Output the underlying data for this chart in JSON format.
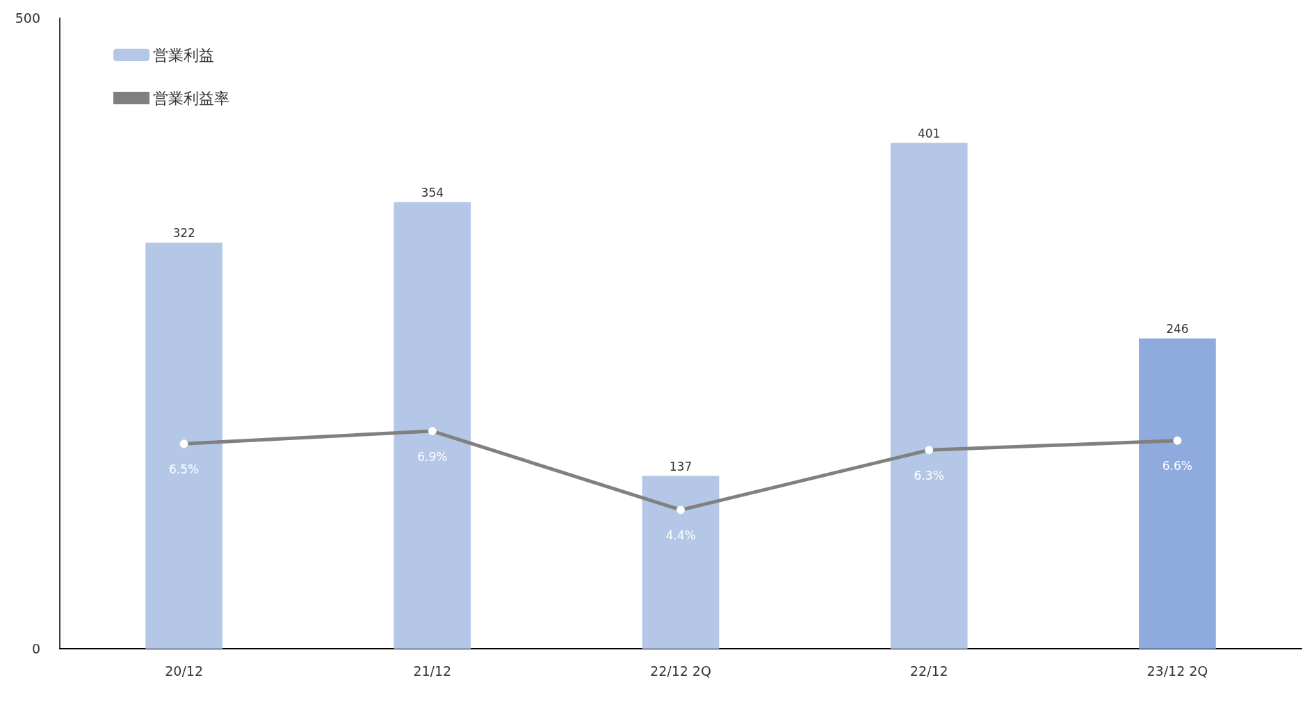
{
  "chart_data": {
    "type": "bar",
    "categories": [
      "20/12",
      "21/12",
      "22/12 2Q",
      "22/12",
      "23/12 2Q"
    ],
    "series": [
      {
        "name": "営業利益",
        "colors": [
          "#b4c7e7",
          "#b4c7e7",
          "#b4c7e7",
          "#b4c7e7",
          "#8faadc"
        ],
        "values": [
          322,
          354,
          137,
          401,
          246
        ],
        "value_labels": [
          "322",
          "354",
          "137",
          "401",
          "246"
        ]
      },
      {
        "name": "営業利益率",
        "type": "line",
        "axis": "y2",
        "color": "#808080",
        "values": [
          6.5,
          6.9,
          4.4,
          6.3,
          6.6
        ],
        "value_labels": [
          "6.5%",
          "6.9%",
          "4.4%",
          "6.3%",
          "6.6%"
        ]
      }
    ],
    "ylim": [
      0,
      500
    ],
    "yticks": [
      0,
      500
    ],
    "y2lim": [
      0,
      20
    ],
    "grid": false,
    "legend": "top left",
    "marker": "circle"
  }
}
